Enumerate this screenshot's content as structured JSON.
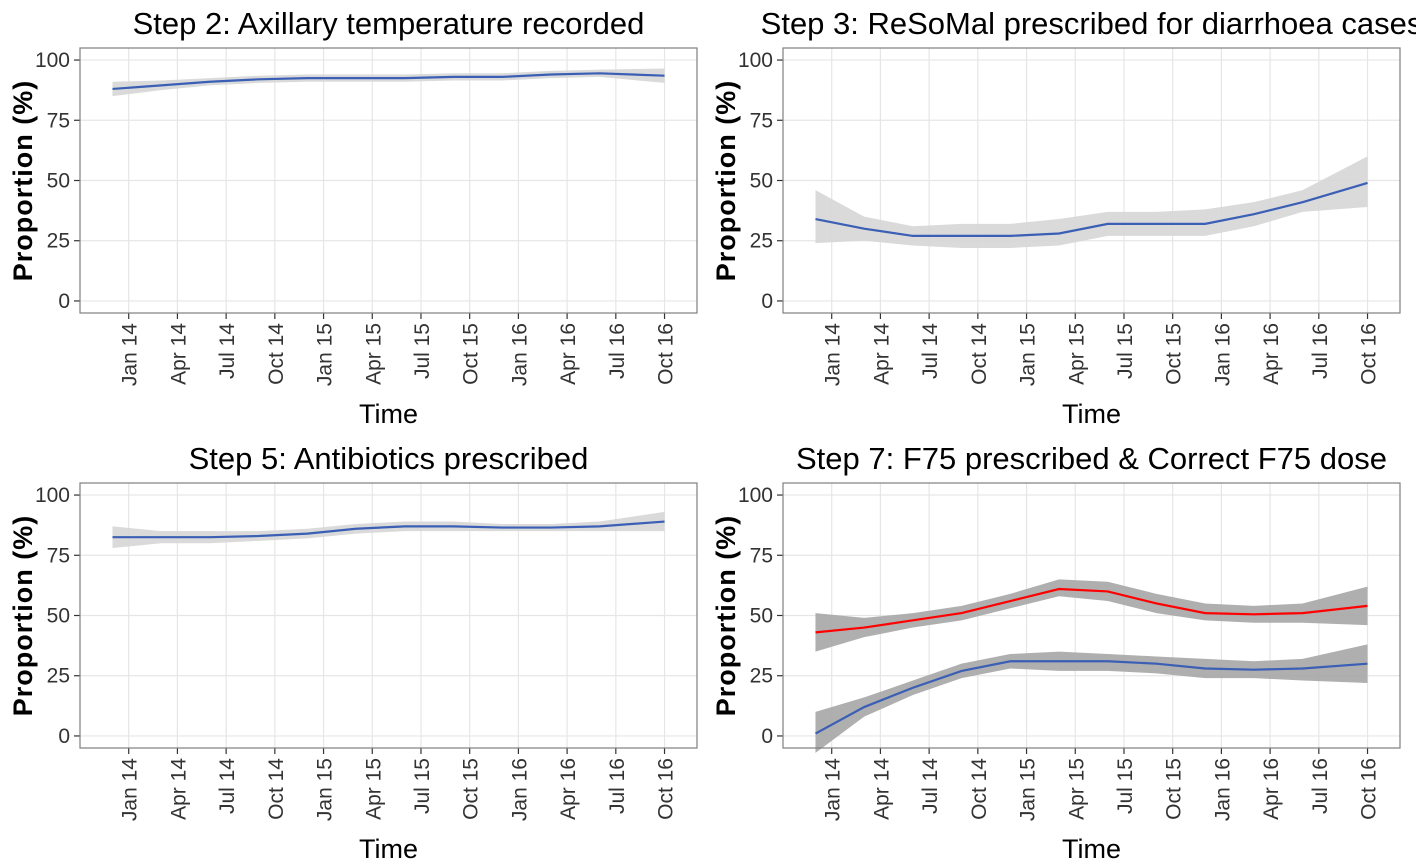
{
  "chart_data": [
    {
      "type": "line",
      "title": "Step 2: Axillary temperature recorded",
      "xlabel": "Time",
      "ylabel": "Proportion (%)",
      "x": [
        "2013-12",
        "2014-03",
        "2014-06",
        "2014-09",
        "2014-12",
        "2015-03",
        "2015-06",
        "2015-09",
        "2015-12",
        "2016-03",
        "2016-06",
        "2016-10"
      ],
      "xlim": [
        "2013-10",
        "2016-12"
      ],
      "xticks": [
        {
          "value": "2014-01",
          "label": "Jan 14"
        },
        {
          "value": "2014-04",
          "label": "Apr 14"
        },
        {
          "value": "2014-07",
          "label": "Jul 14"
        },
        {
          "value": "2014-10",
          "label": "Oct 14"
        },
        {
          "value": "2015-01",
          "label": "Jan 15"
        },
        {
          "value": "2015-04",
          "label": "Apr 15"
        },
        {
          "value": "2015-07",
          "label": "Jul 15"
        },
        {
          "value": "2015-10",
          "label": "Oct 15"
        },
        {
          "value": "2016-01",
          "label": "Jan 16"
        },
        {
          "value": "2016-04",
          "label": "Apr 16"
        },
        {
          "value": "2016-07",
          "label": "Jul 16"
        },
        {
          "value": "2016-10",
          "label": "Oct 16"
        }
      ],
      "ylim": [
        -5,
        105
      ],
      "yticks": [
        0,
        25,
        50,
        75,
        100
      ],
      "grid": true,
      "band_color": "#d6d6d6",
      "series": [
        {
          "color": "#3a5fb5",
          "values": [
            88,
            89.5,
            91,
            92,
            92.5,
            92.5,
            92.5,
            93,
            93,
            94,
            94.5,
            93.5
          ],
          "lower": [
            85,
            87.5,
            89.5,
            90.5,
            91,
            91,
            91,
            91.5,
            91.5,
            92.5,
            93,
            90.5
          ],
          "upper": [
            91,
            91.5,
            92.5,
            93.5,
            94,
            94,
            94,
            94.5,
            94.5,
            95.5,
            96,
            96.5
          ]
        }
      ]
    },
    {
      "type": "line",
      "title": "Step 3: ReSoMal prescribed for diarrhoea cases",
      "xlabel": "Time",
      "ylabel": "Proportion (%)",
      "x": [
        "2013-12",
        "2014-03",
        "2014-06",
        "2014-09",
        "2014-12",
        "2015-03",
        "2015-06",
        "2015-09",
        "2015-12",
        "2016-03",
        "2016-06",
        "2016-10"
      ],
      "xlim": [
        "2013-10",
        "2016-12"
      ],
      "xticks": [
        {
          "value": "2014-01",
          "label": "Jan 14"
        },
        {
          "value": "2014-04",
          "label": "Apr 14"
        },
        {
          "value": "2014-07",
          "label": "Jul 14"
        },
        {
          "value": "2014-10",
          "label": "Oct 14"
        },
        {
          "value": "2015-01",
          "label": "Jan 15"
        },
        {
          "value": "2015-04",
          "label": "Apr 15"
        },
        {
          "value": "2015-07",
          "label": "Jul 15"
        },
        {
          "value": "2015-10",
          "label": "Oct 15"
        },
        {
          "value": "2016-01",
          "label": "Jan 16"
        },
        {
          "value": "2016-04",
          "label": "Apr 16"
        },
        {
          "value": "2016-07",
          "label": "Jul 16"
        },
        {
          "value": "2016-10",
          "label": "Oct 16"
        }
      ],
      "ylim": [
        -5,
        105
      ],
      "yticks": [
        0,
        25,
        50,
        75,
        100
      ],
      "grid": true,
      "band_color": "#d6d6d6",
      "series": [
        {
          "color": "#3a5fb5",
          "values": [
            34,
            30,
            27,
            27,
            27,
            28,
            32,
            32,
            32,
            36,
            41,
            49
          ],
          "lower": [
            24,
            25,
            23,
            22,
            22,
            23,
            27,
            27,
            27,
            31,
            37,
            39
          ],
          "upper": [
            46,
            35,
            31,
            32,
            32,
            34,
            37,
            37,
            38,
            41,
            46,
            60
          ]
        }
      ]
    },
    {
      "type": "line",
      "title": "Step 5: Antibiotics prescribed",
      "xlabel": "Time",
      "ylabel": "Proportion (%)",
      "x": [
        "2013-12",
        "2014-03",
        "2014-06",
        "2014-09",
        "2014-12",
        "2015-03",
        "2015-06",
        "2015-09",
        "2015-12",
        "2016-03",
        "2016-06",
        "2016-10"
      ],
      "xlim": [
        "2013-10",
        "2016-12"
      ],
      "xticks": [
        {
          "value": "2014-01",
          "label": "Jan 14"
        },
        {
          "value": "2014-04",
          "label": "Apr 14"
        },
        {
          "value": "2014-07",
          "label": "Jul 14"
        },
        {
          "value": "2014-10",
          "label": "Oct 14"
        },
        {
          "value": "2015-01",
          "label": "Jan 15"
        },
        {
          "value": "2015-04",
          "label": "Apr 15"
        },
        {
          "value": "2015-07",
          "label": "Jul 15"
        },
        {
          "value": "2015-10",
          "label": "Oct 15"
        },
        {
          "value": "2016-01",
          "label": "Jan 16"
        },
        {
          "value": "2016-04",
          "label": "Apr 16"
        },
        {
          "value": "2016-07",
          "label": "Jul 16"
        },
        {
          "value": "2016-10",
          "label": "Oct 16"
        }
      ],
      "ylim": [
        -5,
        105
      ],
      "yticks": [
        0,
        25,
        50,
        75,
        100
      ],
      "grid": true,
      "band_color": "#d6d6d6",
      "series": [
        {
          "color": "#3a5fb5",
          "values": [
            82.5,
            82.5,
            82.5,
            83,
            84,
            86,
            87,
            87,
            86.5,
            86.5,
            87,
            89
          ],
          "lower": [
            78,
            80,
            80,
            81,
            82,
            84,
            85,
            85,
            85,
            85,
            85,
            85
          ],
          "upper": [
            87,
            85,
            85,
            85,
            86,
            88,
            89,
            89,
            88,
            88,
            89,
            93
          ]
        }
      ]
    },
    {
      "type": "line",
      "title": "Step 7: F75 prescribed & Correct F75 dose",
      "xlabel": "Time",
      "ylabel": "Proportion (%)",
      "x": [
        "2013-12",
        "2014-03",
        "2014-06",
        "2014-09",
        "2014-12",
        "2015-03",
        "2015-06",
        "2015-09",
        "2015-12",
        "2016-03",
        "2016-06",
        "2016-10"
      ],
      "xlim": [
        "2013-10",
        "2016-12"
      ],
      "xticks": [
        {
          "value": "2014-01",
          "label": "Jan 14"
        },
        {
          "value": "2014-04",
          "label": "Apr 14"
        },
        {
          "value": "2014-07",
          "label": "Jul 14"
        },
        {
          "value": "2014-10",
          "label": "Oct 14"
        },
        {
          "value": "2015-01",
          "label": "Jan 15"
        },
        {
          "value": "2015-04",
          "label": "Apr 15"
        },
        {
          "value": "2015-07",
          "label": "Jul 15"
        },
        {
          "value": "2015-10",
          "label": "Oct 15"
        },
        {
          "value": "2016-01",
          "label": "Jan 16"
        },
        {
          "value": "2016-04",
          "label": "Apr 16"
        },
        {
          "value": "2016-07",
          "label": "Jul 16"
        },
        {
          "value": "2016-10",
          "label": "Oct 16"
        }
      ],
      "ylim": [
        -5,
        105
      ],
      "yticks": [
        0,
        25,
        50,
        75,
        100
      ],
      "grid": true,
      "band_color": "#a6a6a6",
      "series": [
        {
          "color": "#ff0000",
          "values": [
            43,
            45,
            48,
            51,
            56,
            61,
            60,
            55,
            51,
            50.5,
            51,
            54
          ],
          "lower": [
            35,
            41,
            45,
            48,
            53,
            58,
            56,
            51,
            48,
            47,
            47,
            46
          ],
          "upper": [
            51,
            49,
            51,
            54,
            59,
            65,
            64,
            59,
            55,
            54,
            55,
            62
          ]
        },
        {
          "color": "#3a5fb5",
          "values": [
            1,
            12,
            20,
            27,
            31,
            31,
            31,
            30,
            28,
            27.5,
            28,
            30
          ],
          "lower": [
            -7,
            8,
            17,
            24,
            28,
            27,
            27,
            26,
            24,
            24,
            23,
            22
          ],
          "upper": [
            10,
            16,
            23,
            30,
            34,
            35,
            34,
            33,
            32,
            31,
            32,
            38
          ]
        }
      ]
    }
  ]
}
